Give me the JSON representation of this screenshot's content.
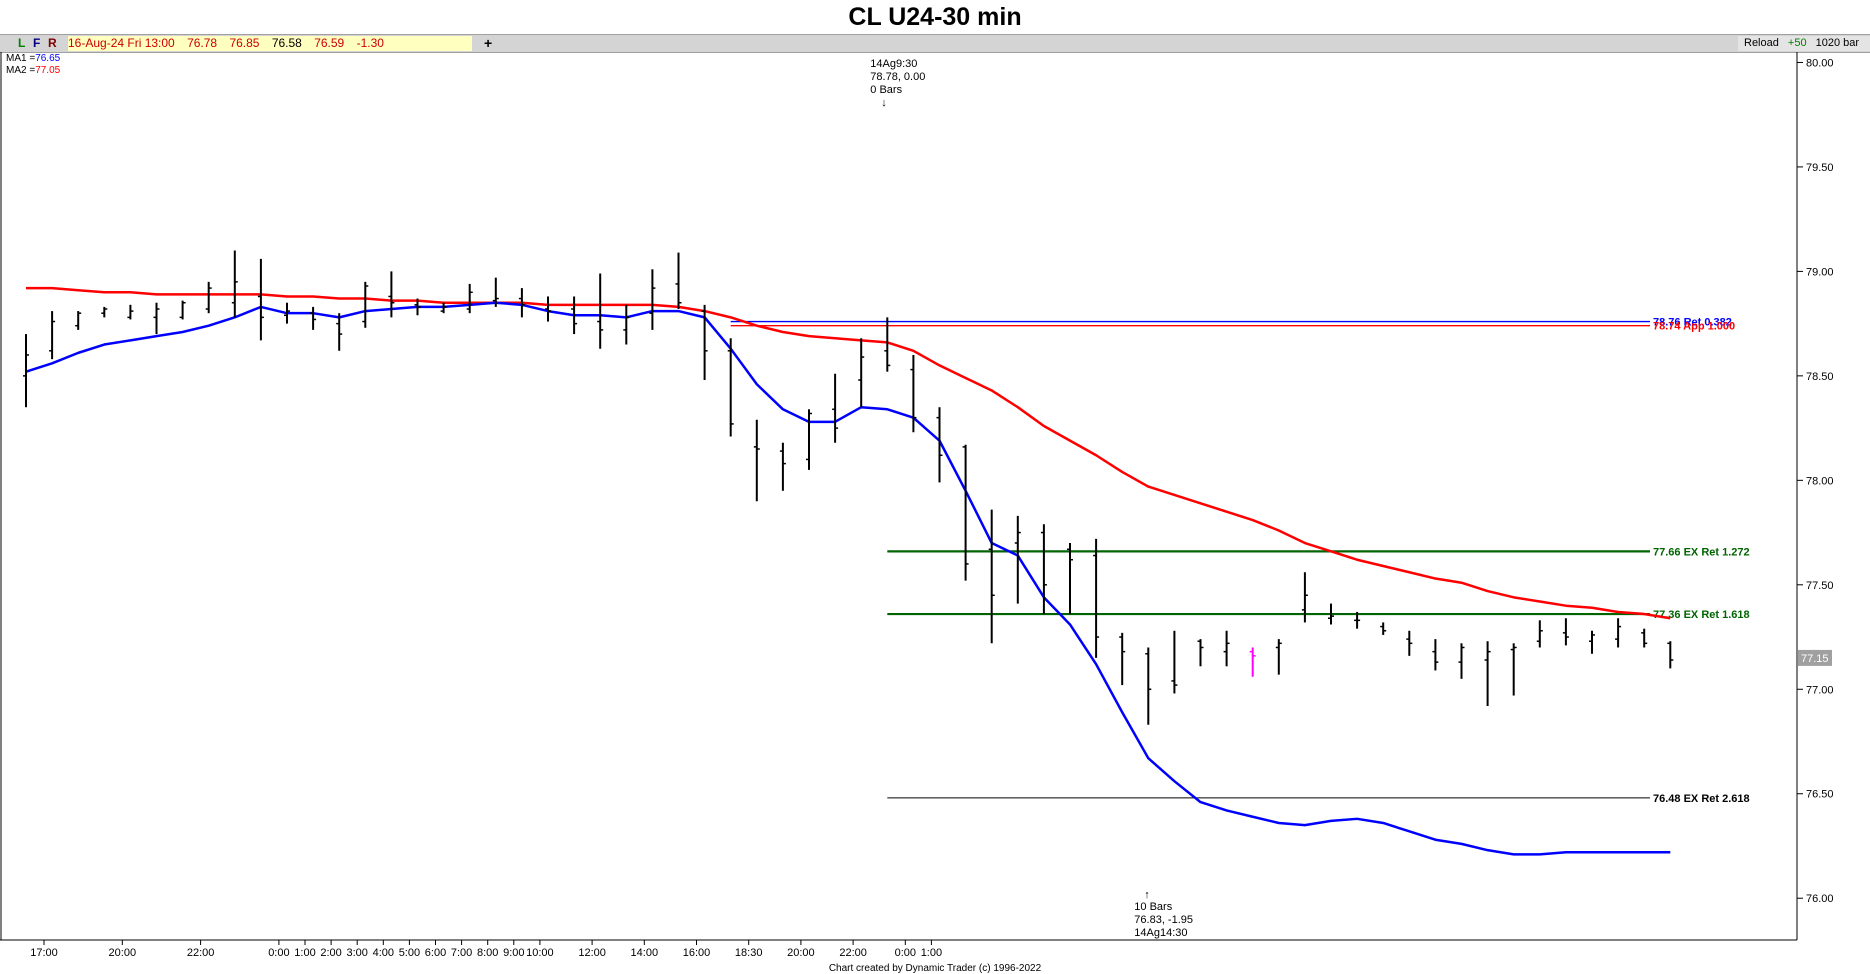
{
  "title": "CL U24-30 min",
  "toolbar": {
    "lfr": [
      "L",
      "F",
      "R"
    ],
    "info": {
      "datetime": "16-Aug-24 Fri 13:00",
      "open": "76.78",
      "high": "76.85",
      "low": "76.58",
      "close": "76.59",
      "change": "-1.30"
    },
    "plus_label": "+",
    "reload_label": "Reload",
    "plus50_label": "+50",
    "bars_label": "1020 bar"
  },
  "ma_legend": [
    {
      "name": "MA1",
      "value": "76.65",
      "color": "#0000ff"
    },
    {
      "name": "MA2",
      "value": "77.05",
      "color": "#ff0000"
    }
  ],
  "footer": "Chart created by Dynamic Trader  (c) 1996-2022",
  "colors": {
    "bars": "#000000",
    "highlight_bar": "#ff00ff",
    "ma1": "#0000ff",
    "ma2": "#ff0000",
    "ret_line": "#006400",
    "hi_line": "#ff0000"
  },
  "chart_data": {
    "type": "ohlc",
    "title": "CL U24-30 min",
    "ylim": [
      75.8,
      80.05
    ],
    "y_ticks": [
      "80.00",
      "79.50",
      "79.00",
      "78.50",
      "78.00",
      "77.50",
      "77.00",
      "76.50",
      "76.00"
    ],
    "y_tick_values": [
      80.0,
      79.5,
      79.0,
      78.5,
      78.0,
      77.5,
      77.0,
      76.5,
      76.0
    ],
    "x_ticks": [
      "17:00",
      "20:00",
      "22:00",
      "0:00",
      "1:00",
      "2:00",
      "3:00",
      "4:00",
      "5:00",
      "6:00",
      "7:00",
      "8:00",
      "9:00",
      "10:00",
      "12:00",
      "14:00",
      "16:00",
      "18:30",
      "20:00",
      "22:00",
      "0:00",
      "1:00"
    ],
    "x_tick_bar_index": [
      0,
      3,
      6,
      9,
      10,
      11,
      12,
      13,
      14,
      15,
      16,
      17,
      18,
      19,
      21,
      23,
      25,
      27,
      29,
      31,
      33,
      34
    ],
    "current_price": "77.15",
    "current_price_value": 77.15,
    "bars": [
      {
        "o": 78.5,
        "h": 78.7,
        "l": 78.35,
        "c": 78.6
      },
      {
        "o": 78.62,
        "h": 78.81,
        "l": 78.58,
        "c": 78.76
      },
      {
        "o": 78.74,
        "h": 78.81,
        "l": 78.72,
        "c": 78.8
      },
      {
        "o": 78.8,
        "h": 78.83,
        "l": 78.78,
        "c": 78.82
      },
      {
        "o": 78.78,
        "h": 78.84,
        "l": 78.77,
        "c": 78.81
      },
      {
        "o": 78.78,
        "h": 78.85,
        "l": 78.7,
        "c": 78.82
      },
      {
        "o": 78.78,
        "h": 78.86,
        "l": 78.77,
        "c": 78.85
      },
      {
        "o": 78.82,
        "h": 78.95,
        "l": 78.8,
        "c": 78.92
      },
      {
        "o": 78.85,
        "h": 79.1,
        "l": 78.78,
        "c": 78.95
      },
      {
        "o": 78.88,
        "h": 79.06,
        "l": 78.67,
        "c": 78.78
      },
      {
        "o": 78.79,
        "h": 78.85,
        "l": 78.75,
        "c": 78.81
      },
      {
        "o": 78.8,
        "h": 78.83,
        "l": 78.72,
        "c": 78.77
      },
      {
        "o": 78.75,
        "h": 78.8,
        "l": 78.62,
        "c": 78.7
      },
      {
        "o": 78.76,
        "h": 78.95,
        "l": 78.73,
        "c": 78.93
      },
      {
        "o": 78.88,
        "h": 79.0,
        "l": 78.78,
        "c": 78.85
      },
      {
        "o": 78.84,
        "h": 78.87,
        "l": 78.79,
        "c": 78.83
      },
      {
        "o": 78.81,
        "h": 78.85,
        "l": 78.8,
        "c": 78.83
      },
      {
        "o": 78.82,
        "h": 78.94,
        "l": 78.8,
        "c": 78.9
      },
      {
        "o": 78.86,
        "h": 78.97,
        "l": 78.83,
        "c": 78.87
      },
      {
        "o": 78.87,
        "h": 78.92,
        "l": 78.78,
        "c": 78.84
      },
      {
        "o": 78.82,
        "h": 78.88,
        "l": 78.76,
        "c": 78.81
      },
      {
        "o": 78.82,
        "h": 78.88,
        "l": 78.7,
        "c": 78.75
      },
      {
        "o": 78.76,
        "h": 78.99,
        "l": 78.63,
        "c": 78.72
      },
      {
        "o": 78.72,
        "h": 78.84,
        "l": 78.65,
        "c": 78.78
      },
      {
        "o": 78.8,
        "h": 79.01,
        "l": 78.72,
        "c": 78.92
      },
      {
        "o": 78.94,
        "h": 79.09,
        "l": 78.82,
        "c": 78.85
      },
      {
        "o": 78.81,
        "h": 78.84,
        "l": 78.48,
        "c": 78.62
      },
      {
        "o": 78.62,
        "h": 78.68,
        "l": 78.21,
        "c": 78.27
      },
      {
        "o": 78.16,
        "h": 78.29,
        "l": 77.9,
        "c": 78.15
      },
      {
        "o": 78.14,
        "h": 78.18,
        "l": 77.95,
        "c": 78.08
      },
      {
        "o": 78.1,
        "h": 78.34,
        "l": 78.05,
        "c": 78.32
      },
      {
        "o": 78.34,
        "h": 78.51,
        "l": 78.18,
        "c": 78.25
      },
      {
        "o": 78.48,
        "h": 78.68,
        "l": 78.35,
        "c": 78.59
      },
      {
        "o": 78.62,
        "h": 78.78,
        "l": 78.52,
        "c": 78.55
      },
      {
        "o": 78.53,
        "h": 78.6,
        "l": 78.23,
        "c": 78.3
      },
      {
        "o": 78.3,
        "h": 78.35,
        "l": 77.99,
        "c": 78.12
      },
      {
        "o": 78.16,
        "h": 78.17,
        "l": 77.52,
        "c": 77.6
      },
      {
        "o": 77.67,
        "h": 77.86,
        "l": 77.22,
        "c": 77.45
      },
      {
        "o": 77.7,
        "h": 77.83,
        "l": 77.41,
        "c": 77.75
      },
      {
        "o": 77.75,
        "h": 77.79,
        "l": 77.36,
        "c": 77.5
      },
      {
        "o": 77.67,
        "h": 77.7,
        "l": 77.36,
        "c": 77.62
      },
      {
        "o": 77.64,
        "h": 77.72,
        "l": 77.15,
        "c": 77.25
      },
      {
        "o": 77.25,
        "h": 77.27,
        "l": 77.02,
        "c": 77.18
      },
      {
        "o": 77.17,
        "h": 77.2,
        "l": 76.83,
        "c": 77.0
      },
      {
        "o": 77.04,
        "h": 77.28,
        "l": 76.98,
        "c": 77.02
      },
      {
        "o": 77.23,
        "h": 77.24,
        "l": 77.11,
        "c": 77.2
      },
      {
        "o": 77.18,
        "h": 77.28,
        "l": 77.11,
        "c": 77.22
      },
      {
        "o": 77.18,
        "h": 77.2,
        "l": 77.06,
        "c": 77.16
      },
      {
        "o": 77.2,
        "h": 77.24,
        "l": 77.07,
        "c": 77.22
      },
      {
        "o": 77.38,
        "h": 77.56,
        "l": 77.32,
        "c": 77.45
      },
      {
        "o": 77.34,
        "h": 77.41,
        "l": 77.31,
        "c": 77.35
      },
      {
        "o": 77.33,
        "h": 77.37,
        "l": 77.29,
        "c": 77.33
      },
      {
        "o": 77.3,
        "h": 77.32,
        "l": 77.26,
        "c": 77.28
      },
      {
        "o": 77.24,
        "h": 77.28,
        "l": 77.16,
        "c": 77.22
      },
      {
        "o": 77.18,
        "h": 77.24,
        "l": 77.09,
        "c": 77.13
      },
      {
        "o": 77.13,
        "h": 77.22,
        "l": 77.05,
        "c": 77.2
      },
      {
        "o": 77.14,
        "h": 77.23,
        "l": 76.92,
        "c": 77.18
      },
      {
        "o": 77.19,
        "h": 77.22,
        "l": 76.97,
        "c": 77.2
      },
      {
        "o": 77.23,
        "h": 77.33,
        "l": 77.2,
        "c": 77.28
      },
      {
        "o": 77.27,
        "h": 77.34,
        "l": 77.21,
        "c": 77.25
      },
      {
        "o": 77.23,
        "h": 77.28,
        "l": 77.17,
        "c": 77.26
      },
      {
        "o": 77.24,
        "h": 77.34,
        "l": 77.2,
        "c": 77.3
      },
      {
        "o": 77.27,
        "h": 77.29,
        "l": 77.2,
        "c": 77.22
      },
      {
        "o": 77.22,
        "h": 77.23,
        "l": 77.1,
        "c": 77.14
      }
    ],
    "highlight_bar_index": 47,
    "ma1": {
      "name": "MA1",
      "value_label": "76.65",
      "values": [
        78.52,
        78.56,
        78.61,
        78.65,
        78.67,
        78.69,
        78.71,
        78.74,
        78.78,
        78.83,
        78.8,
        78.8,
        78.78,
        78.81,
        78.82,
        78.83,
        78.83,
        78.84,
        78.85,
        78.84,
        78.81,
        78.79,
        78.79,
        78.78,
        78.81,
        78.81,
        78.78,
        78.63,
        78.46,
        78.34,
        78.28,
        78.28,
        78.35,
        78.34,
        78.3,
        78.19,
        77.95,
        77.7,
        77.64,
        77.44,
        77.31,
        77.12,
        76.89,
        76.67,
        76.56,
        76.46,
        76.42,
        76.39,
        76.36,
        76.35,
        76.37,
        76.38,
        76.36,
        76.32,
        76.28,
        76.26,
        76.23,
        76.21,
        76.21,
        76.22,
        76.22,
        76.22,
        76.22,
        76.22
      ]
    },
    "ma2": {
      "name": "MA2",
      "value_label": "77.05",
      "values": [
        78.92,
        78.92,
        78.91,
        78.9,
        78.9,
        78.89,
        78.89,
        78.89,
        78.89,
        78.89,
        78.88,
        78.88,
        78.87,
        78.87,
        78.86,
        78.86,
        78.85,
        78.85,
        78.85,
        78.85,
        78.84,
        78.84,
        78.84,
        78.84,
        78.84,
        78.83,
        78.81,
        78.78,
        78.74,
        78.71,
        78.69,
        78.68,
        78.67,
        78.66,
        78.62,
        78.55,
        78.49,
        78.43,
        78.35,
        78.26,
        78.19,
        78.12,
        78.04,
        77.97,
        77.93,
        77.89,
        77.85,
        77.81,
        77.76,
        77.7,
        77.66,
        77.62,
        77.59,
        77.56,
        77.53,
        77.51,
        77.47,
        77.44,
        77.42,
        77.4,
        77.39,
        77.37,
        77.36,
        77.34
      ]
    },
    "horizontal_levels": [
      {
        "label": "78.76 Ret 0.382",
        "value": 78.76,
        "color": "#0000ff",
        "start_bar": 27
      },
      {
        "label": "78.74 App 1.000",
        "value": 78.74,
        "color": "#ff0000",
        "start_bar": 27
      },
      {
        "label": "77.66 EX Ret 1.272",
        "value": 77.66,
        "color": "#006400",
        "start_bar": 33
      },
      {
        "label": "77.36 EX Ret 1.618",
        "value": 77.36,
        "color": "#006400",
        "start_bar": 33
      },
      {
        "label": "76.48 EX Ret 2.618",
        "value": 76.48,
        "color": "#000000",
        "start_bar": 33
      }
    ],
    "annotations": [
      {
        "lines": [
          "14Ag9:30",
          "78.78, 0.00",
          "0 Bars"
        ],
        "bar": 33,
        "arrow": "down"
      },
      {
        "lines": [
          "10 Bars",
          "76.83, -1.95",
          "14Ag14:30"
        ],
        "bar": 43,
        "arrow": "up"
      }
    ]
  }
}
